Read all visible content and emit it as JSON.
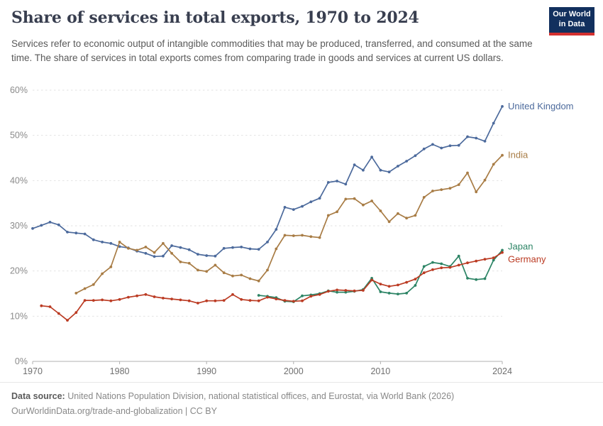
{
  "header": {
    "title": "Share of services in total exports, 1970 to 2024",
    "subtitle": "Services refer to economic output of intangible commodities that may be produced, transferred, and consumed at the same time. The share of services in total exports comes from comparing trade in goods and services at current US dollars.",
    "logo": {
      "line1": "Our World",
      "line2": "in Data",
      "bg_color": "#12305e",
      "accent_color": "#d3302f"
    }
  },
  "chart_data": {
    "type": "line",
    "title": "Share of services in total exports, 1970 to 2024",
    "xlabel": "",
    "ylabel": "Share of services in total exports",
    "unit": "%",
    "ylim": [
      0,
      60
    ],
    "ytick_step": 10,
    "x_range": [
      1970,
      2024
    ],
    "x_ticks": [
      1970,
      1980,
      1990,
      2000,
      2010,
      2024
    ],
    "grid": "horizontal-dashed",
    "legend_position": "end-of-line-labels",
    "series": [
      {
        "name": "United Kingdom",
        "color": "#4C6A9C",
        "start_year": 1970,
        "label_dy": 0,
        "values": [
          29.4,
          30.1,
          30.8,
          30.2,
          28.6,
          28.4,
          28.2,
          26.9,
          26.4,
          26.1,
          25.4,
          25.1,
          24.4,
          23.9,
          23.2,
          23.3,
          25.6,
          25.2,
          24.7,
          23.7,
          23.4,
          23.3,
          25.0,
          25.2,
          25.3,
          24.9,
          24.8,
          26.4,
          29.2,
          34.1,
          33.6,
          34.3,
          35.3,
          36.1,
          39.6,
          39.9,
          39.2,
          43.5,
          42.3,
          45.2,
          42.3,
          41.9,
          43.2,
          44.3,
          45.5,
          47.0,
          48.0,
          47.2,
          47.7,
          47.8,
          49.7,
          49.4,
          48.7,
          52.7,
          56.4
        ]
      },
      {
        "name": "India",
        "color": "#A87C45",
        "start_year": 1975,
        "label_dy": 0,
        "values": [
          15.1,
          16.1,
          17.0,
          19.4,
          20.9,
          26.4,
          25.0,
          24.6,
          25.3,
          24.1,
          26.1,
          23.9,
          22.0,
          21.7,
          20.2,
          19.9,
          21.3,
          19.6,
          18.9,
          19.1,
          18.3,
          17.8,
          20.2,
          24.9,
          27.9,
          27.8,
          27.9,
          27.6,
          27.4,
          32.3,
          33.1,
          35.9,
          36.0,
          34.6,
          35.5,
          33.3,
          30.9,
          32.7,
          31.7,
          32.3,
          36.3,
          37.7,
          38.0,
          38.3,
          39.1,
          41.7,
          37.5,
          40.1,
          43.6,
          45.6
        ]
      },
      {
        "name": "Japan",
        "color": "#2C8465",
        "start_year": 1996,
        "label_dy": -5,
        "values": [
          14.6,
          14.4,
          14.1,
          13.3,
          13.2,
          14.5,
          14.7,
          15.0,
          15.6,
          15.3,
          15.3,
          15.5,
          15.9,
          18.4,
          15.4,
          15.1,
          14.9,
          15.1,
          16.8,
          21.0,
          21.9,
          21.6,
          21.0,
          23.3,
          18.4,
          18.1,
          18.3,
          22.4,
          24.6
        ]
      },
      {
        "name": "Germany",
        "color": "#BB3B23",
        "start_year": 1971,
        "label_dy": 10,
        "values": [
          12.3,
          12.1,
          10.6,
          9.1,
          10.8,
          13.5,
          13.5,
          13.6,
          13.4,
          13.7,
          14.2,
          14.5,
          14.8,
          14.3,
          14.0,
          13.8,
          13.6,
          13.4,
          12.9,
          13.4,
          13.4,
          13.5,
          14.8,
          13.7,
          13.5,
          13.4,
          14.2,
          13.8,
          13.5,
          13.3,
          13.4,
          14.4,
          14.8,
          15.5,
          15.8,
          15.7,
          15.6,
          15.7,
          18.0,
          17.1,
          16.6,
          16.9,
          17.5,
          18.2,
          19.6,
          20.3,
          20.7,
          20.8,
          21.3,
          21.8,
          22.2,
          22.6,
          22.9,
          24.1
        ]
      }
    ]
  },
  "footer": {
    "source_label": "Data source:",
    "source": "United Nations Population Division, national statistical offices, and Eurostat, via World Bank (2026)",
    "attribution": "OurWorldinData.org/trade-and-globalization | CC BY"
  }
}
